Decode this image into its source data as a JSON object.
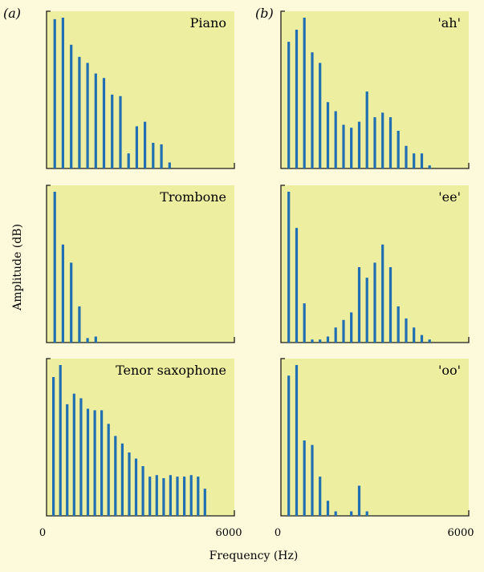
{
  "figure": {
    "column_labels": [
      "(a)",
      "(b)"
    ],
    "ylabel": "Amplitude (dB)",
    "xlabel": "Frequency (Hz)",
    "x_ticks": [
      "0",
      "6000"
    ]
  },
  "colors": {
    "background": "#fdfadb",
    "plot_fill": "#eeeea0",
    "bar": "#1f6fb2",
    "axis": "#1b1b1b"
  },
  "chart_data": [
    {
      "type": "bar",
      "title": "Piano",
      "column": "a",
      "xlim": [
        0,
        6000
      ],
      "ylim": [
        0,
        1
      ],
      "x": [
        262,
        524,
        786,
        1048,
        1310,
        1572,
        1834,
        2096,
        2358,
        2620,
        2882,
        3144,
        3406,
        3668,
        3930
      ],
      "values": [
        0.99,
        1.0,
        0.82,
        0.74,
        0.7,
        0.63,
        0.6,
        0.49,
        0.48,
        0.1,
        0.28,
        0.31,
        0.17,
        0.16,
        0.04
      ]
    },
    {
      "type": "bar",
      "title": "Trombone",
      "column": "a",
      "xlim": [
        0,
        6000
      ],
      "ylim": [
        0,
        1
      ],
      "x": [
        262,
        524,
        786,
        1048,
        1310,
        1572
      ],
      "values": [
        1.0,
        0.65,
        0.53,
        0.24,
        0.03,
        0.04
      ]
    },
    {
      "type": "bar",
      "title": "Tenor saxophone",
      "column": "a",
      "xlim": [
        0,
        6000
      ],
      "ylim": [
        0,
        1
      ],
      "x": [
        220,
        440,
        660,
        880,
        1100,
        1320,
        1540,
        1760,
        1980,
        2200,
        2420,
        2640,
        2860,
        3080,
        3300,
        3520,
        3740,
        3960,
        4180,
        4400,
        4620,
        4840,
        5060
      ],
      "values": [
        0.92,
        1.0,
        0.74,
        0.81,
        0.78,
        0.71,
        0.7,
        0.7,
        0.61,
        0.53,
        0.48,
        0.42,
        0.38,
        0.33,
        0.26,
        0.27,
        0.25,
        0.27,
        0.26,
        0.26,
        0.27,
        0.26,
        0.18
      ]
    },
    {
      "type": "bar",
      "title": "'ah'",
      "column": "b",
      "xlim": [
        0,
        6000
      ],
      "ylim": [
        0,
        1
      ],
      "x": [
        250,
        500,
        750,
        1000,
        1250,
        1500,
        1750,
        2000,
        2250,
        2500,
        2750,
        3000,
        3250,
        3500,
        3750,
        4000,
        4250,
        4500,
        4750
      ],
      "values": [
        0.84,
        0.92,
        1.0,
        0.77,
        0.7,
        0.44,
        0.38,
        0.29,
        0.27,
        0.31,
        0.51,
        0.34,
        0.37,
        0.34,
        0.25,
        0.15,
        0.1,
        0.1,
        0.02
      ]
    },
    {
      "type": "bar",
      "title": "'ee'",
      "column": "b",
      "xlim": [
        0,
        6000
      ],
      "ylim": [
        0,
        1
      ],
      "x": [
        250,
        500,
        750,
        1000,
        1250,
        1500,
        1750,
        2000,
        2250,
        2500,
        2750,
        3000,
        3250,
        3500,
        3750,
        4000,
        4250,
        4500,
        4750
      ],
      "values": [
        1.0,
        0.76,
        0.26,
        0.02,
        0.02,
        0.04,
        0.1,
        0.15,
        0.2,
        0.5,
        0.43,
        0.53,
        0.65,
        0.5,
        0.24,
        0.16,
        0.1,
        0.05,
        0.02
      ]
    },
    {
      "type": "bar",
      "title": "'oo'",
      "column": "b",
      "xlim": [
        0,
        6000
      ],
      "ylim": [
        0,
        1
      ],
      "x": [
        250,
        500,
        750,
        1000,
        1250,
        1500,
        1750,
        2000,
        2250,
        2500,
        2750
      ],
      "values": [
        0.93,
        1.0,
        0.5,
        0.47,
        0.26,
        0.1,
        0.03,
        0.0,
        0.03,
        0.2,
        0.03
      ]
    }
  ]
}
